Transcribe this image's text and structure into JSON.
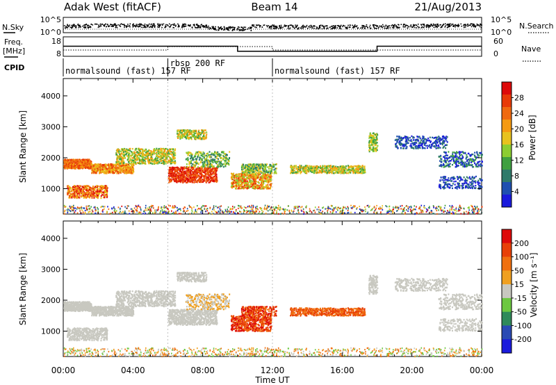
{
  "chart_data": {
    "type": "heatmap",
    "header": {
      "radar": "Adak West (fitACF)",
      "beam": "Beam 14",
      "date": "21/Aug/2013"
    },
    "top_panels": {
      "nsky_label": "N.Sky",
      "nsearch_label": "N.Search",
      "freq_label_line1": "Freq.",
      "freq_label_line2": "[MHz]",
      "nave_label": "Nave",
      "cpid_label": "CPID",
      "noise_left_ticks": [
        "10^5",
        "10^0"
      ],
      "noise_right_ticks": [
        "10^5",
        "10^0"
      ],
      "freq_left_ticks": [
        "18",
        "8"
      ],
      "nave_right_ticks": [
        "60",
        "0"
      ],
      "frequency_mhz": [
        {
          "start_ut": 0.0,
          "end_ut": 10.0,
          "value": 13.2
        },
        {
          "start_ut": 10.0,
          "end_ut": 18.0,
          "value": 10.6
        },
        {
          "start_ut": 18.0,
          "end_ut": 24.0,
          "value": 13.2
        }
      ],
      "cpid_segments": [
        {
          "start_ut": 0.0,
          "end_ut": 6.0,
          "label": "normalsound (fast) 157 RF"
        },
        {
          "start_ut": 6.0,
          "end_ut": 12.0,
          "label": "rbsp 200 RF"
        },
        {
          "start_ut": 12.0,
          "end_ut": 24.0,
          "label": "normalsound (fast) 157 RF"
        }
      ]
    },
    "x_axis": {
      "label": "Time UT",
      "range_ut": [
        0,
        24
      ],
      "ticks": [
        "00:00",
        "04:00",
        "08:00",
        "12:00",
        "16:00",
        "20:00",
        "00:00"
      ]
    },
    "y_axis": {
      "label": "Slant Range [km]",
      "range_km": [
        180,
        4560
      ],
      "ticks": [
        "1000",
        "2000",
        "3000",
        "4000"
      ]
    },
    "power_panel": {
      "colorbar_label": "Power [dB]",
      "colorbar_ticks": [
        "4",
        "8",
        "12",
        "16",
        "20",
        "24",
        "28"
      ],
      "colors": [
        "#1a1adc",
        "#1f4fb0",
        "#2f7a6a",
        "#3fa040",
        "#8ccd32",
        "#e8c21e",
        "#f59a12",
        "#f06a10",
        "#e83a08",
        "#dd0a0a"
      ],
      "scale_range_db": [
        0,
        30
      ]
    },
    "velocity_panel": {
      "colorbar_label": "Velocity [m s⁻¹]",
      "colorbar_ticks": [
        "200",
        "100",
        "50",
        "15",
        "-15",
        "-50",
        "-100",
        "-200"
      ],
      "colors": [
        "#1a1adc",
        "#2a4ab4",
        "#2f8a5a",
        "#6cc840",
        "#c8c8c0",
        "#f0a020",
        "#f07010",
        "#e84008",
        "#dd0a0a"
      ],
      "scale_range_ms": [
        -250,
        250
      ]
    }
  }
}
